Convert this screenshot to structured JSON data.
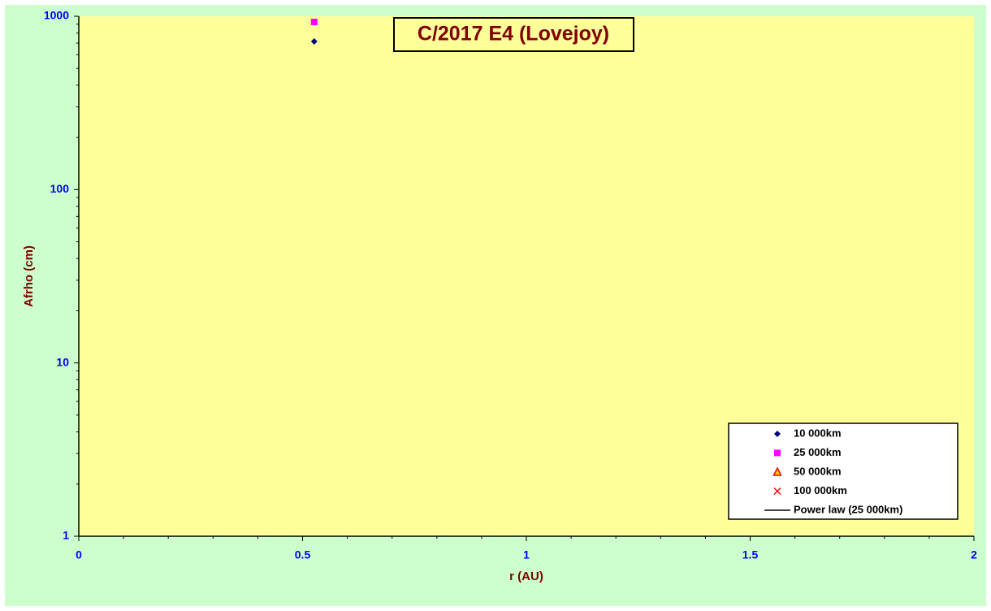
{
  "chart_data": {
    "type": "scatter",
    "title": "C/2017 E4 (Lovejoy)",
    "x_label": "r (AU)",
    "y_label": "Afrho (cm)",
    "xlim": [
      0,
      2
    ],
    "xticks": [
      0,
      0.5,
      1,
      1.5,
      2
    ],
    "xminorticks": [
      0.1,
      0.2,
      0.3,
      0.4,
      0.6,
      0.7,
      0.8,
      0.9,
      1.1,
      1.2,
      1.3,
      1.4,
      1.6,
      1.7,
      1.8,
      1.9
    ],
    "ylim": [
      1,
      1000
    ],
    "yscale": "log",
    "yticks": [
      1,
      10,
      100,
      1000
    ],
    "yminorticks": [
      2,
      3,
      4,
      5,
      6,
      7,
      8,
      9,
      20,
      30,
      40,
      50,
      60,
      70,
      80,
      90,
      200,
      300,
      400,
      500,
      600,
      700,
      800,
      900
    ],
    "legend": "lower right",
    "series": [
      {
        "name": "10 000km",
        "color": "#000080",
        "marker": "diamond",
        "x": [
          0.526
        ],
        "values": [
          716
        ]
      },
      {
        "name": "25 000km",
        "color": "#ff00ff",
        "marker": "square",
        "x": [
          0.526
        ],
        "values": [
          927
        ]
      },
      {
        "name": "50 000km",
        "color": "#ff0000",
        "marker": "triangle",
        "x": [],
        "values": []
      },
      {
        "name": "100 000km",
        "color": "#ff0000",
        "marker": "x",
        "x": [],
        "values": []
      },
      {
        "name": "Power law (25 000km)",
        "color": "#000000",
        "marker": "line",
        "x": [],
        "values": []
      }
    ]
  }
}
